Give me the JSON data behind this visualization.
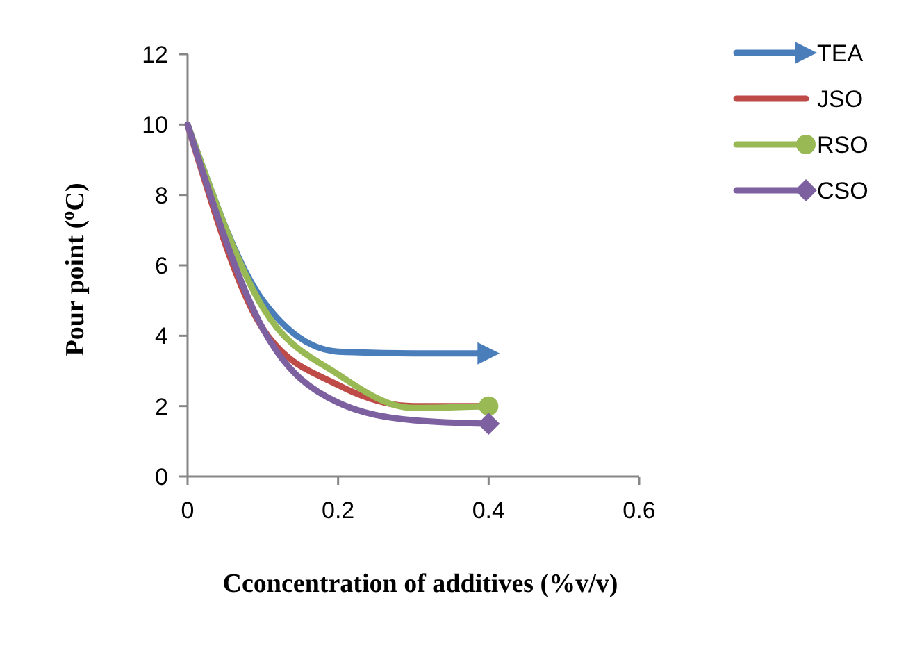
{
  "chart_data": {
    "type": "line",
    "xlabel": "Cconcentration of additives (%v/v)",
    "ylabel": "Pour point ($^{o}$C)",
    "x": [
      0,
      0.1,
      0.2,
      0.3,
      0.4
    ],
    "xlim": [
      0,
      0.6
    ],
    "xticks": [
      0,
      0.2,
      0.4,
      0.6
    ],
    "ylim": [
      0,
      12
    ],
    "yticks": [
      0,
      2,
      4,
      6,
      8,
      10,
      12
    ],
    "grid": false,
    "legend": "top right",
    "line_style": "solid",
    "series": [
      {
        "name": "TEA",
        "color": "#4a7ebb",
        "values": [
          10,
          5.0,
          3.55,
          3.5,
          3.5
        ]
      },
      {
        "name": "JSO",
        "color": "#be4b48",
        "values": [
          10,
          4.2,
          2.6,
          2.0,
          2.0
        ]
      },
      {
        "name": "RSO",
        "color": "#98b954",
        "values": [
          10,
          4.8,
          2.9,
          1.95,
          2.0
        ]
      },
      {
        "name": "CSO",
        "color": "#7d60a0",
        "values": [
          10,
          4.2,
          2.1,
          1.6,
          1.5
        ]
      }
    ]
  }
}
